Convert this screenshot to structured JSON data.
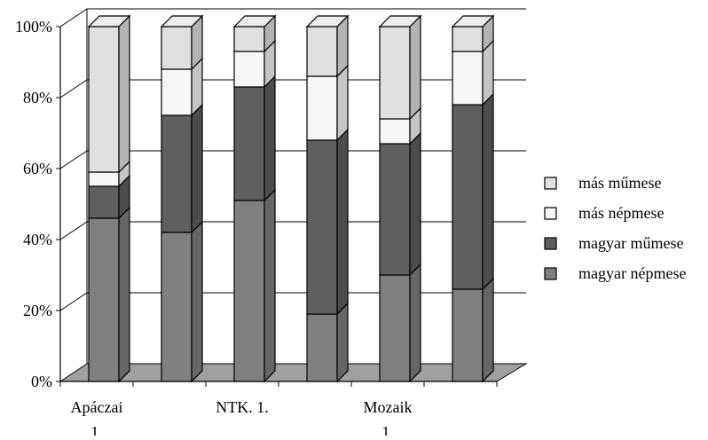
{
  "chart_data": {
    "type": "bar",
    "stacked": true,
    "percent_stacked": true,
    "three_d": true,
    "categories": [
      "Apáczai 1.",
      "",
      "NTK. 1.",
      "",
      "Mozaik 1.",
      ""
    ],
    "category_labels": [
      [
        "Apáczai",
        "1."
      ],
      [],
      [
        "NTK. 1."
      ],
      [],
      [
        "Mozaik",
        "1."
      ],
      []
    ],
    "series": [
      {
        "name": "magyar népmese",
        "color": "#808080",
        "values": [
          46,
          42,
          51,
          19,
          30,
          26
        ]
      },
      {
        "name": "magyar műmese",
        "color": "#5f5f5f",
        "values": [
          9,
          33,
          32,
          49,
          37,
          52
        ]
      },
      {
        "name": "más népmese",
        "color": "#f6f6f6",
        "values": [
          4,
          13,
          10,
          18,
          7,
          15
        ]
      },
      {
        "name": "más műmese",
        "color": "#e0e0e0",
        "values": [
          41,
          12,
          7,
          14,
          26,
          7
        ]
      }
    ],
    "y_tick_labels": [
      "0%",
      "20%",
      "40%",
      "60%",
      "80%",
      "100%"
    ],
    "ylim": [
      0,
      100
    ],
    "grid": true,
    "legend_position": "right",
    "legend_order": [
      "más műmese",
      "más népmese",
      "magyar műmese",
      "magyar népmese"
    ],
    "title": "",
    "xlabel": "",
    "ylabel": ""
  }
}
